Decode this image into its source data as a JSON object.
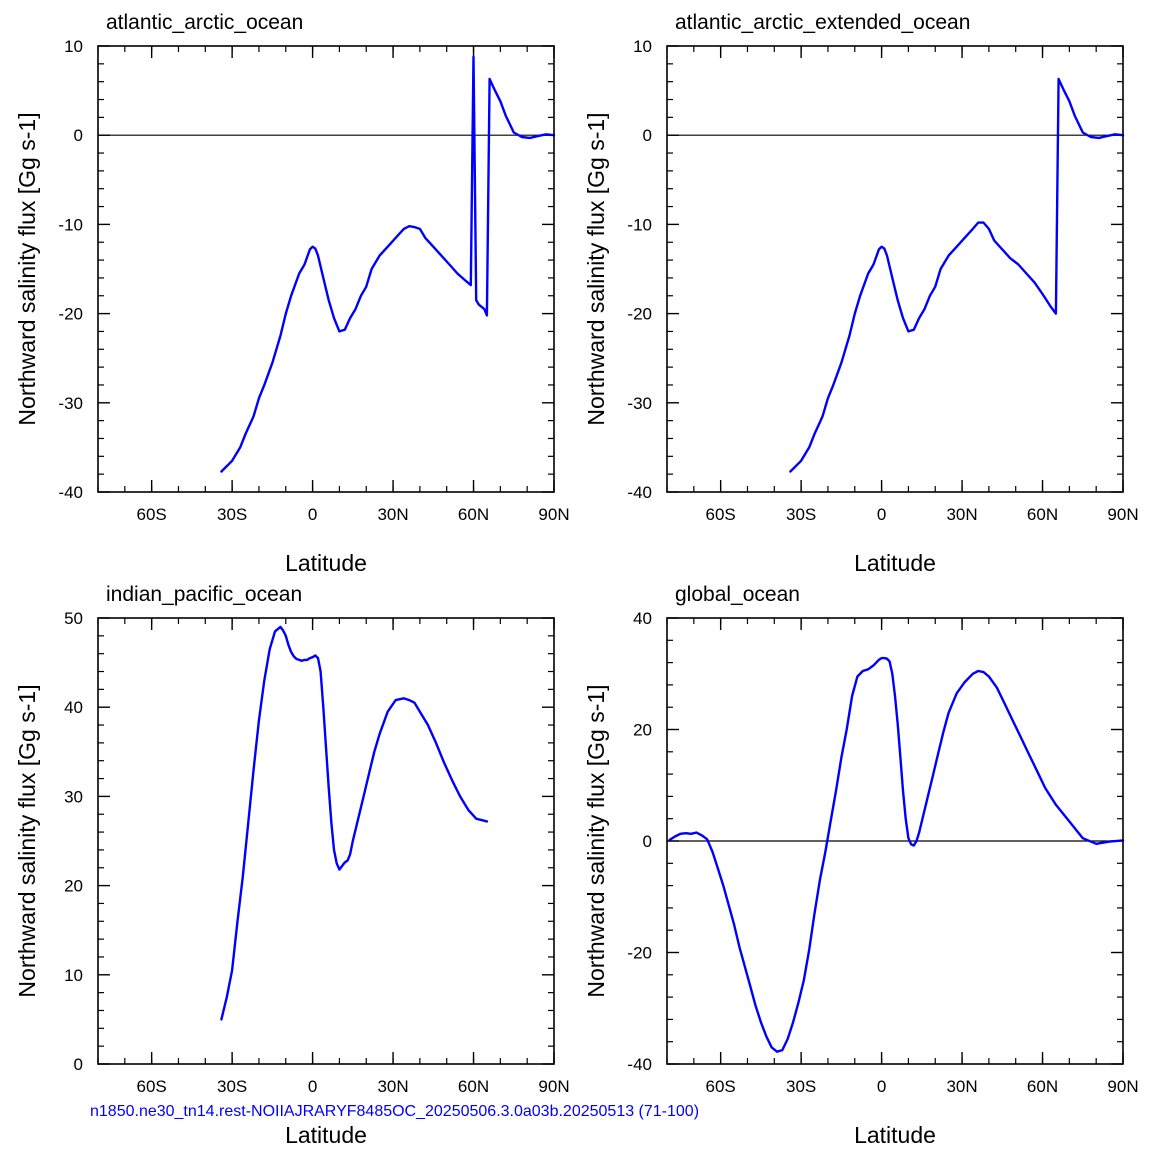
{
  "footnote": "n1850.ne30_tn14.rest-NOIIAJRARYF8485OC_20250506.3.0a03b.20250513 (71-100)",
  "line_color": "#0000ff",
  "chart_data": [
    {
      "type": "line",
      "title": "atlantic_arctic_ocean",
      "xlabel": "Latitude",
      "ylabel": "Northward salinity flux [Gg s-1]",
      "xlim": [
        -80,
        90
      ],
      "ylim": [
        -40,
        10
      ],
      "xticks": [
        -60,
        -30,
        0,
        30,
        60,
        90
      ],
      "xtick_labels": [
        "60S",
        "30S",
        "0",
        "30N",
        "60N",
        "90N"
      ],
      "yticks": [
        -40,
        -30,
        -20,
        -10,
        0,
        10
      ],
      "ytick_labels": [
        "-40",
        "-30",
        "-20",
        "-10",
        "0",
        "10"
      ],
      "zero_line": true,
      "series": [
        {
          "x": [
            -34,
            -30,
            -27,
            -25,
            -22,
            -20,
            -18,
            -15,
            -12,
            -10,
            -8,
            -5,
            -3,
            -1,
            0,
            1,
            2,
            4,
            6,
            8,
            10,
            12,
            14,
            16,
            18,
            20,
            22,
            25,
            28,
            31,
            34,
            36,
            38,
            40,
            42,
            45,
            48,
            51,
            54,
            57,
            59,
            60,
            61,
            62,
            64,
            65,
            66,
            68,
            70,
            72,
            75,
            78,
            81,
            84,
            87,
            90
          ],
          "y": [
            -37.7,
            -36.5,
            -35,
            -33.5,
            -31.5,
            -29.5,
            -28,
            -25.5,
            -22.5,
            -20,
            -18,
            -15.5,
            -14.5,
            -12.8,
            -12.5,
            -12.7,
            -13.5,
            -16,
            -18.5,
            -20.5,
            -22,
            -21.8,
            -20.5,
            -19.5,
            -18,
            -17,
            -15,
            -13.5,
            -12.5,
            -11.5,
            -10.5,
            -10.2,
            -10.3,
            -10.5,
            -11.5,
            -12.5,
            -13.5,
            -14.5,
            -15.5,
            -16.3,
            -16.8,
            8.8,
            -18.5,
            -19,
            -19.5,
            -20.2,
            6.3,
            5,
            3.8,
            2.2,
            0.3,
            -0.2,
            -0.3,
            -0.1,
            0.1,
            0
          ]
        }
      ]
    },
    {
      "type": "line",
      "title": "atlantic_arctic_extended_ocean",
      "xlabel": "Latitude",
      "ylabel": "Northward salinity flux [Gg s-1]",
      "xlim": [
        -80,
        90
      ],
      "ylim": [
        -40,
        10
      ],
      "xticks": [
        -60,
        -30,
        0,
        30,
        60,
        90
      ],
      "xtick_labels": [
        "60S",
        "30S",
        "0",
        "30N",
        "60N",
        "90N"
      ],
      "yticks": [
        -40,
        -30,
        -20,
        -10,
        0,
        10
      ],
      "ytick_labels": [
        "-40",
        "-30",
        "-20",
        "-10",
        "0",
        "10"
      ],
      "zero_line": true,
      "series": [
        {
          "x": [
            -34,
            -30,
            -27,
            -25,
            -22,
            -20,
            -18,
            -15,
            -12,
            -10,
            -8,
            -5,
            -3,
            -1,
            0,
            1,
            2,
            4,
            6,
            8,
            10,
            12,
            14,
            16,
            18,
            20,
            22,
            25,
            28,
            31,
            34,
            36,
            38,
            40,
            42,
            45,
            48,
            51,
            54,
            57,
            60,
            63,
            65,
            66,
            68,
            70,
            72,
            75,
            78,
            81,
            84,
            87,
            90
          ],
          "y": [
            -37.7,
            -36.5,
            -35,
            -33.5,
            -31.5,
            -29.5,
            -28,
            -25.5,
            -22.5,
            -20,
            -18,
            -15.5,
            -14.5,
            -12.8,
            -12.5,
            -12.7,
            -13.5,
            -16,
            -18.5,
            -20.5,
            -22,
            -21.8,
            -20.5,
            -19.5,
            -18,
            -17,
            -15,
            -13.5,
            -12.5,
            -11.5,
            -10.5,
            -9.8,
            -9.8,
            -10.5,
            -11.8,
            -12.8,
            -13.8,
            -14.5,
            -15.5,
            -16.5,
            -17.8,
            -19.2,
            -20,
            6.3,
            5,
            3.8,
            2.2,
            0.3,
            -0.2,
            -0.3,
            -0.1,
            0.1,
            0
          ]
        }
      ]
    },
    {
      "type": "line",
      "title": "indian_pacific_ocean",
      "xlabel": "Latitude",
      "ylabel": "Northward salinity flux [Gg s-1]",
      "xlim": [
        -80,
        90
      ],
      "ylim": [
        0,
        50
      ],
      "xticks": [
        -60,
        -30,
        0,
        30,
        60,
        90
      ],
      "xtick_labels": [
        "60S",
        "30S",
        "0",
        "30N",
        "60N",
        "90N"
      ],
      "yticks": [
        0,
        10,
        20,
        30,
        40,
        50
      ],
      "ytick_labels": [
        "0",
        "10",
        "20",
        "30",
        "40",
        "50"
      ],
      "zero_line": false,
      "series": [
        {
          "x": [
            -34,
            -32,
            -30,
            -28,
            -26,
            -24,
            -22,
            -20,
            -18,
            -16,
            -14,
            -12,
            -11,
            -10,
            -9,
            -8,
            -7,
            -6,
            -5,
            -4,
            -3,
            -2,
            -1,
            0,
            1,
            2,
            3,
            4,
            5,
            6,
            7,
            8,
            9,
            10,
            11,
            12,
            13,
            14,
            15,
            17,
            19,
            21,
            23,
            25,
            28,
            31,
            34,
            36,
            38,
            40,
            43,
            46,
            49,
            52,
            55,
            58,
            61,
            65
          ],
          "y": [
            5,
            7.5,
            10.5,
            16,
            21,
            27,
            33,
            38.5,
            43,
            46.5,
            48.5,
            49,
            48.6,
            48,
            47,
            46.2,
            45.7,
            45.4,
            45.3,
            45.2,
            45.3,
            45.3,
            45.5,
            45.6,
            45.8,
            45.5,
            44,
            40,
            35.5,
            31,
            27,
            24,
            22.5,
            21.8,
            22.2,
            22.6,
            22.8,
            23.5,
            25,
            27.5,
            30,
            32.5,
            35,
            37,
            39.5,
            40.8,
            41,
            40.8,
            40.5,
            39.5,
            38,
            36,
            33.8,
            31.8,
            30,
            28.5,
            27.5,
            27.2
          ]
        }
      ]
    },
    {
      "type": "line",
      "title": "global_ocean",
      "xlabel": "Latitude",
      "ylabel": "Northward salinity flux [Gg s-1]",
      "xlim": [
        -80,
        90
      ],
      "ylim": [
        -40,
        40
      ],
      "xticks": [
        -60,
        -30,
        0,
        30,
        60,
        90
      ],
      "xtick_labels": [
        "60S",
        "30S",
        "0",
        "30N",
        "60N",
        "90N"
      ],
      "yticks": [
        -40,
        -20,
        0,
        20,
        40
      ],
      "ytick_labels": [
        "-40",
        "-20",
        "0",
        "20",
        "40"
      ],
      "zero_line": true,
      "series": [
        {
          "x": [
            -79,
            -77,
            -75,
            -73,
            -71,
            -69,
            -67,
            -65,
            -63,
            -61,
            -59,
            -57,
            -55,
            -53,
            -51,
            -49,
            -47,
            -45,
            -43,
            -41,
            -39,
            -37,
            -35,
            -33,
            -31,
            -29,
            -27,
            -25,
            -23,
            -21,
            -19,
            -17,
            -15,
            -13,
            -11,
            -9,
            -7,
            -5,
            -3,
            -1,
            0,
            1,
            2,
            3,
            4,
            5,
            6,
            7,
            8,
            9,
            10,
            11,
            12,
            13,
            14,
            15,
            17,
            19,
            21,
            23,
            25,
            28,
            31,
            34,
            36,
            38,
            40,
            43,
            46,
            49,
            52,
            55,
            58,
            61,
            65,
            70,
            75,
            80,
            85,
            90
          ],
          "y": [
            0.2,
            0.8,
            1.3,
            1.4,
            1.3,
            1.5,
            1,
            0.3,
            -2,
            -5,
            -8,
            -11.5,
            -15,
            -19,
            -22.5,
            -26,
            -29.5,
            -32.5,
            -35,
            -37,
            -37.8,
            -37.5,
            -35.5,
            -32.5,
            -29,
            -25,
            -19.5,
            -13,
            -7,
            -2,
            3.5,
            9,
            15,
            20,
            26,
            29.5,
            30.5,
            30.8,
            31.5,
            32.5,
            32.8,
            32.8,
            32.7,
            32.2,
            30,
            26,
            21,
            15,
            9,
            4,
            0.5,
            -0.6,
            -0.8,
            0,
            1.5,
            3.5,
            7.5,
            11.5,
            15.5,
            19.5,
            23,
            26.5,
            28.5,
            30,
            30.5,
            30.3,
            29.5,
            27.5,
            24.5,
            21.5,
            18.5,
            15.5,
            12.5,
            9.5,
            6.5,
            3.5,
            0.5,
            -0.5,
            -0.1,
            0.1
          ]
        }
      ]
    }
  ]
}
